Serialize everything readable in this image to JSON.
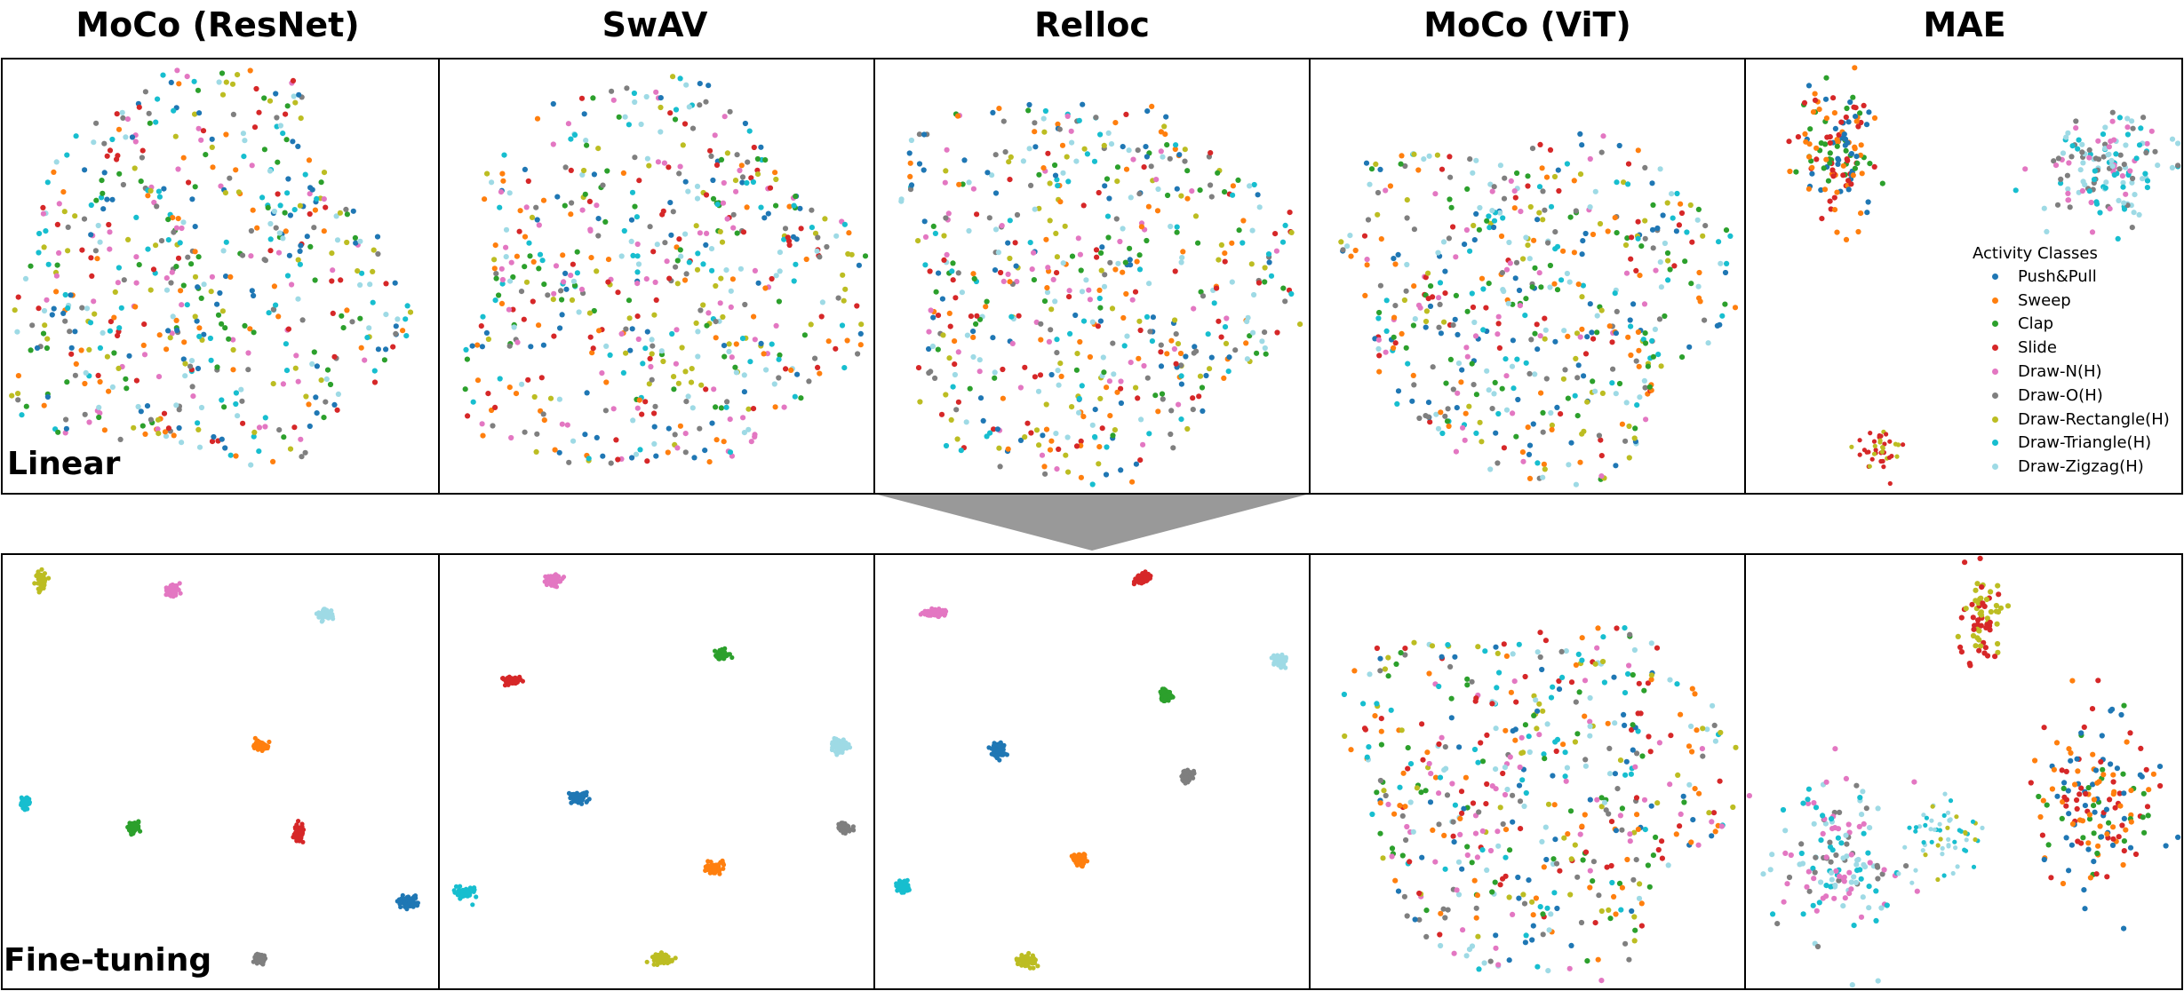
{
  "columns": [
    "MoCo (ResNet)",
    "SwAV",
    "Relloc",
    "MoCo (ViT)",
    "MAE"
  ],
  "rows": [
    "Linear",
    "Fine-tuning"
  ],
  "legend": {
    "title": "Activity Classes",
    "items": [
      {
        "label": "Push&Pull",
        "color": "#1f77b4"
      },
      {
        "label": "Sweep",
        "color": "#ff7f0e"
      },
      {
        "label": "Clap",
        "color": "#2ca02c"
      },
      {
        "label": "Slide",
        "color": "#d62728"
      },
      {
        "label": "Draw-N(H)",
        "color": "#e377c2"
      },
      {
        "label": "Draw-O(H)",
        "color": "#7f7f7f"
      },
      {
        "label": "Draw-Rectangle(H)",
        "color": "#bcbd22"
      },
      {
        "label": "Draw-Triangle(H)",
        "color": "#17becf"
      },
      {
        "label": "Draw-Zigzag(H)",
        "color": "#9edae5"
      }
    ]
  },
  "chart_data": {
    "type": "scatter",
    "title": "",
    "description_kind": "t-SNE embeddings grid (2 rows x 5 columns), 9 activity classes",
    "xlim": [
      0,
      100
    ],
    "ylim": [
      0,
      100
    ],
    "grid": false,
    "legend_position": "right (inside MAE Linear panel)",
    "series_names": [
      "Push&Pull",
      "Sweep",
      "Clap",
      "Slide",
      "Draw-N(H)",
      "Draw-O(H)",
      "Draw-Rectangle(H)",
      "Draw-Triangle(H)",
      "Draw-Zigzag(H)"
    ],
    "panels": [
      {
        "row": "Linear",
        "column": "MoCo (ResNet)",
        "layout": "blob",
        "cx": 46,
        "cy": 50,
        "rx": 44,
        "ry": 46,
        "points": 560
      },
      {
        "row": "Linear",
        "column": "SwAV",
        "layout": "blob",
        "cx": 50,
        "cy": 52,
        "rx": 46,
        "ry": 45,
        "points": 560
      },
      {
        "row": "Linear",
        "column": "Relloc",
        "layout": "blob",
        "cx": 50,
        "cy": 52,
        "rx": 46,
        "ry": 45,
        "points": 560
      },
      {
        "row": "Linear",
        "column": "MoCo (ViT)",
        "layout": "blob",
        "cx": 52,
        "cy": 55,
        "rx": 44,
        "ry": 40,
        "points": 520
      },
      {
        "row": "Linear",
        "column": "MAE",
        "layout": "clusters",
        "clusters": [
          {
            "cx": 22,
            "cy": 22,
            "rx": 9,
            "ry": 15,
            "classes": [
              0,
              1,
              2,
              3
            ],
            "n": 140
          },
          {
            "cx": 83,
            "cy": 25,
            "rx": 14,
            "ry": 12,
            "classes": [
              4,
              5,
              7,
              8
            ],
            "n": 150
          },
          {
            "cx": 31,
            "cy": 90,
            "rx": 5,
            "ry": 4,
            "classes": [
              6,
              3
            ],
            "n": 40
          }
        ]
      },
      {
        "row": "Fine-tuning",
        "column": "MoCo (ResNet)",
        "layout": "clusters",
        "clusters": [
          {
            "cx": 9,
            "cy": 6,
            "rx": 1.2,
            "ry": 2.2,
            "classes": [
              6
            ],
            "n": 60
          },
          {
            "cx": 39,
            "cy": 8.5,
            "rx": 1.5,
            "ry": 1.4,
            "classes": [
              4
            ],
            "n": 60
          },
          {
            "cx": 74,
            "cy": 14,
            "rx": 1.8,
            "ry": 1.2,
            "classes": [
              8
            ],
            "n": 60
          },
          {
            "cx": 59,
            "cy": 44,
            "rx": 1.8,
            "ry": 1.0,
            "classes": [
              1
            ],
            "n": 60
          },
          {
            "cx": 5.5,
            "cy": 57,
            "rx": 1.0,
            "ry": 1.7,
            "classes": [
              7
            ],
            "n": 60
          },
          {
            "cx": 30,
            "cy": 63,
            "rx": 1.4,
            "ry": 1.3,
            "classes": [
              2
            ],
            "n": 60
          },
          {
            "cx": 68,
            "cy": 64,
            "rx": 1.2,
            "ry": 1.8,
            "classes": [
              3
            ],
            "n": 60
          },
          {
            "cx": 93,
            "cy": 80,
            "rx": 2.2,
            "ry": 1.3,
            "classes": [
              0
            ],
            "n": 60
          },
          {
            "cx": 59,
            "cy": 93,
            "rx": 1.2,
            "ry": 1.1,
            "classes": [
              5
            ],
            "n": 60
          }
        ]
      },
      {
        "row": "Fine-tuning",
        "column": "SwAV",
        "layout": "clusters",
        "clusters": [
          {
            "cx": 26.5,
            "cy": 6,
            "rx": 1.6,
            "ry": 1.3,
            "classes": [
              4
            ],
            "n": 60
          },
          {
            "cx": 65,
            "cy": 23,
            "rx": 1.4,
            "ry": 1.3,
            "classes": [
              2
            ],
            "n": 60
          },
          {
            "cx": 17,
            "cy": 29,
            "rx": 2.0,
            "ry": 1.0,
            "classes": [
              3
            ],
            "n": 60
          },
          {
            "cx": 92,
            "cy": 44,
            "rx": 1.6,
            "ry": 1.4,
            "classes": [
              8
            ],
            "n": 60
          },
          {
            "cx": 32,
            "cy": 56,
            "rx": 2.0,
            "ry": 1.2,
            "classes": [
              0
            ],
            "n": 60
          },
          {
            "cx": 93,
            "cy": 63,
            "rx": 1.6,
            "ry": 1.0,
            "classes": [
              5
            ],
            "n": 60
          },
          {
            "cx": 63,
            "cy": 72,
            "rx": 2.0,
            "ry": 1.2,
            "classes": [
              1
            ],
            "n": 60
          },
          {
            "cx": 6,
            "cy": 78,
            "rx": 1.8,
            "ry": 1.2,
            "classes": [
              7
            ],
            "n": 60
          },
          {
            "cx": 51,
            "cy": 93,
            "rx": 2.6,
            "ry": 1.4,
            "classes": [
              6
            ],
            "n": 60
          }
        ]
      },
      {
        "row": "Fine-tuning",
        "column": "Relloc",
        "layout": "clusters",
        "clusters": [
          {
            "cx": 61.5,
            "cy": 5.5,
            "rx": 1.6,
            "ry": 1.4,
            "classes": [
              3
            ],
            "n": 60
          },
          {
            "cx": 14,
            "cy": 13.5,
            "rx": 2.6,
            "ry": 0.9,
            "classes": [
              4
            ],
            "n": 60
          },
          {
            "cx": 93,
            "cy": 24.5,
            "rx": 1.4,
            "ry": 1.5,
            "classes": [
              8
            ],
            "n": 60
          },
          {
            "cx": 67,
            "cy": 32.5,
            "rx": 1.2,
            "ry": 1.3,
            "classes": [
              2
            ],
            "n": 60
          },
          {
            "cx": 28.5,
            "cy": 45,
            "rx": 1.6,
            "ry": 1.6,
            "classes": [
              0
            ],
            "n": 60
          },
          {
            "cx": 72,
            "cy": 51,
            "rx": 1.3,
            "ry": 1.4,
            "classes": [
              5
            ],
            "n": 60
          },
          {
            "cx": 47,
            "cy": 70,
            "rx": 1.4,
            "ry": 1.4,
            "classes": [
              1
            ],
            "n": 60
          },
          {
            "cx": 6.5,
            "cy": 76.5,
            "rx": 1.4,
            "ry": 1.4,
            "classes": [
              7
            ],
            "n": 60
          },
          {
            "cx": 35,
            "cy": 93.5,
            "rx": 2.2,
            "ry": 1.5,
            "classes": [
              6
            ],
            "n": 60
          }
        ]
      },
      {
        "row": "Fine-tuning",
        "column": "MoCo (ViT)",
        "layout": "blob",
        "cx": 52,
        "cy": 55,
        "rx": 44,
        "ry": 42,
        "points": 520
      },
      {
        "row": "Fine-tuning",
        "column": "MAE",
        "layout": "clusters",
        "clusters": [
          {
            "cx": 54,
            "cy": 15,
            "rx": 5,
            "ry": 11,
            "classes": [
              6,
              3
            ],
            "n": 70
          },
          {
            "cx": 80,
            "cy": 57,
            "rx": 13,
            "ry": 20,
            "classes": [
              0,
              1,
              2,
              3
            ],
            "n": 160
          },
          {
            "cx": 22,
            "cy": 70,
            "rx": 14,
            "ry": 17,
            "classes": [
              4,
              5,
              8,
              7
            ],
            "n": 150
          },
          {
            "cx": 45,
            "cy": 65,
            "rx": 10,
            "ry": 9,
            "classes": [
              7,
              8,
              6
            ],
            "n": 60
          }
        ]
      }
    ]
  }
}
